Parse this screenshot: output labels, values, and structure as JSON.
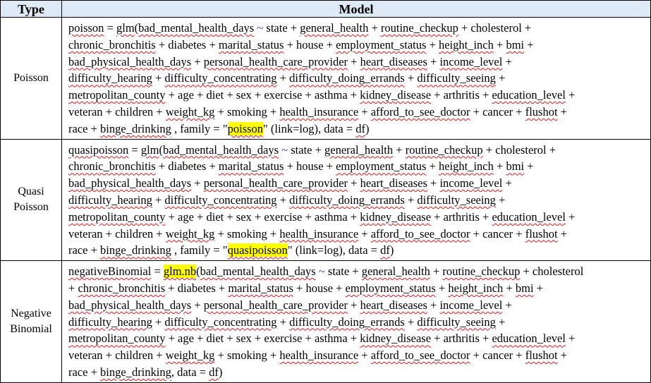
{
  "header": {
    "type_label": "Type",
    "model_label": "Model"
  },
  "rows": [
    {
      "type_lines": [
        "Poisson"
      ],
      "model_lines": [
        [
          [
            "sp",
            "poisson"
          ],
          [
            "t",
            " = "
          ],
          [
            "sp",
            "glm"
          ],
          [
            "t",
            "("
          ],
          [
            "sp",
            "bad_mental_health_days"
          ],
          [
            "t",
            " "
          ],
          [
            "tilde",
            "~"
          ],
          [
            "t",
            " state + "
          ],
          [
            "sp",
            "general_health"
          ],
          [
            "t",
            " + "
          ],
          [
            "sp",
            "routine_checkup"
          ],
          [
            "t",
            " + cholesterol +"
          ]
        ],
        [
          [
            "sp",
            "chronic_bronchitis"
          ],
          [
            "t",
            " + diabetes + "
          ],
          [
            "sp",
            "marital_status"
          ],
          [
            "t",
            " + house + "
          ],
          [
            "sp",
            "employment_status"
          ],
          [
            "t",
            " + "
          ],
          [
            "sp",
            "height_inch"
          ],
          [
            "t",
            " + "
          ],
          [
            "sp",
            "bmi"
          ],
          [
            "t",
            " +"
          ]
        ],
        [
          [
            "sp",
            "bad_physical_health_days"
          ],
          [
            "t",
            " + "
          ],
          [
            "sp",
            "personal_health_care_provider"
          ],
          [
            "t",
            " + "
          ],
          [
            "sp",
            "heart_diseases"
          ],
          [
            "t",
            " + "
          ],
          [
            "sp",
            "income_level"
          ],
          [
            "t",
            " +"
          ]
        ],
        [
          [
            "sp",
            "difficulty_hearing"
          ],
          [
            "t",
            " + "
          ],
          [
            "sp",
            "difficulty_concentrating"
          ],
          [
            "t",
            " + "
          ],
          [
            "sp",
            "difficulty_doing_errands"
          ],
          [
            "t",
            " + "
          ],
          [
            "sp",
            "difficulty_seeing"
          ],
          [
            "t",
            " +"
          ]
        ],
        [
          [
            "sp",
            "metropolitan_county"
          ],
          [
            "t",
            " + age + diet + sex + exercise + asthma + "
          ],
          [
            "sp",
            "kidney_disease"
          ],
          [
            "t",
            " + arthritis + "
          ],
          [
            "sp",
            "education_level"
          ],
          [
            "t",
            " +"
          ]
        ],
        [
          [
            "t",
            "veteran + children + "
          ],
          [
            "sp",
            "weight_kg"
          ],
          [
            "t",
            " + smoking + "
          ],
          [
            "sp",
            "health_insurance"
          ],
          [
            "t",
            " + "
          ],
          [
            "sp",
            "afford_to_see_doctor"
          ],
          [
            "t",
            " + cancer + "
          ],
          [
            "sp",
            "flushot"
          ],
          [
            "t",
            " +"
          ]
        ],
        [
          [
            "t",
            "race + "
          ],
          [
            "sp",
            "binge_drinking"
          ],
          [
            "t",
            " , family = \""
          ],
          [
            "hl-sp",
            "poisson"
          ],
          [
            "t",
            "\" (link=log), data = "
          ],
          [
            "sp",
            "df"
          ],
          [
            "t",
            ")"
          ]
        ]
      ]
    },
    {
      "type_lines": [
        "Quasi",
        "Poisson"
      ],
      "model_lines": [
        [
          [
            "sp",
            "quasipoisson"
          ],
          [
            "t",
            " = "
          ],
          [
            "sp",
            "glm"
          ],
          [
            "t",
            "("
          ],
          [
            "sp",
            "bad_mental_health_days"
          ],
          [
            "t",
            " "
          ],
          [
            "tilde",
            "~"
          ],
          [
            "t",
            " state + "
          ],
          [
            "sp",
            "general_health"
          ],
          [
            "t",
            " + "
          ],
          [
            "sp",
            "routine_checkup"
          ],
          [
            "t",
            " + cholesterol +"
          ]
        ],
        [
          [
            "sp",
            "chronic_bronchitis"
          ],
          [
            "t",
            " + diabetes + "
          ],
          [
            "sp",
            "marital_status"
          ],
          [
            "t",
            " + house + "
          ],
          [
            "sp",
            "employment_status"
          ],
          [
            "t",
            " + "
          ],
          [
            "sp",
            "height_inch"
          ],
          [
            "t",
            " + "
          ],
          [
            "sp",
            "bmi"
          ],
          [
            "t",
            " +"
          ]
        ],
        [
          [
            "sp",
            "bad_physical_health_days"
          ],
          [
            "t",
            " + "
          ],
          [
            "sp",
            "personal_health_care_provider"
          ],
          [
            "t",
            " + "
          ],
          [
            "sp",
            "heart_diseases"
          ],
          [
            "t",
            " + "
          ],
          [
            "sp",
            "income_level"
          ],
          [
            "t",
            " +"
          ]
        ],
        [
          [
            "sp",
            "difficulty_hearing"
          ],
          [
            "t",
            " + "
          ],
          [
            "sp",
            "difficulty_concentrating"
          ],
          [
            "t",
            " + "
          ],
          [
            "sp",
            "difficulty_doing_errands"
          ],
          [
            "t",
            " + "
          ],
          [
            "sp",
            "difficulty_seeing"
          ],
          [
            "t",
            " +"
          ]
        ],
        [
          [
            "sp",
            "metropolitan_county"
          ],
          [
            "t",
            " + age + diet + sex + exercise + asthma + "
          ],
          [
            "sp",
            "kidney_disease"
          ],
          [
            "t",
            " + arthritis + "
          ],
          [
            "sp",
            "education_level"
          ],
          [
            "t",
            " +"
          ]
        ],
        [
          [
            "t",
            "veteran + children + "
          ],
          [
            "sp",
            "weight_kg"
          ],
          [
            "t",
            " + smoking + "
          ],
          [
            "sp",
            "health_insurance"
          ],
          [
            "t",
            " + "
          ],
          [
            "sp",
            "afford_to_see_doctor"
          ],
          [
            "t",
            " + cancer + "
          ],
          [
            "sp",
            "flushot"
          ],
          [
            "t",
            " +"
          ]
        ],
        [
          [
            "t",
            "race + "
          ],
          [
            "sp",
            "binge_drinking"
          ],
          [
            "t",
            " , family = \""
          ],
          [
            "hl-sp",
            "quasipoisson"
          ],
          [
            "t",
            "\" (link=log), data = "
          ],
          [
            "sp",
            "df"
          ],
          [
            "t",
            ")"
          ]
        ]
      ]
    },
    {
      "type_lines": [
        "Negative",
        "Binomial"
      ],
      "model_lines": [
        [
          [
            "sp",
            "negativeBinomial"
          ],
          [
            "t",
            " = "
          ],
          [
            "hl-sp",
            "glm.nb"
          ],
          [
            "t",
            "("
          ],
          [
            "sp",
            "bad_mental_health_days"
          ],
          [
            "t",
            " "
          ],
          [
            "tilde",
            "~"
          ],
          [
            "t",
            " state + "
          ],
          [
            "sp",
            "general_health"
          ],
          [
            "t",
            " + "
          ],
          [
            "sp",
            "routine_checkup"
          ],
          [
            "t",
            " + cholesterol"
          ]
        ],
        [
          [
            "t",
            "+ "
          ],
          [
            "sp",
            "chronic_bronchitis"
          ],
          [
            "t",
            " + diabetes + "
          ],
          [
            "sp",
            "marital_status"
          ],
          [
            "t",
            " + house + "
          ],
          [
            "sp",
            "employment_status"
          ],
          [
            "t",
            " + "
          ],
          [
            "sp",
            "height_inch"
          ],
          [
            "t",
            " + "
          ],
          [
            "sp",
            "bmi"
          ],
          [
            "t",
            " +"
          ]
        ],
        [
          [
            "sp",
            "bad_physical_health_days"
          ],
          [
            "t",
            " + "
          ],
          [
            "sp",
            "personal_health_care_provider"
          ],
          [
            "t",
            " + "
          ],
          [
            "sp",
            "heart_diseases"
          ],
          [
            "t",
            " + "
          ],
          [
            "sp",
            "income_level"
          ],
          [
            "t",
            " +"
          ]
        ],
        [
          [
            "sp",
            "difficulty_hearing"
          ],
          [
            "t",
            " + "
          ],
          [
            "sp",
            "difficulty_concentrating"
          ],
          [
            "t",
            " + "
          ],
          [
            "sp",
            "difficulty_doing_errands"
          ],
          [
            "t",
            " + "
          ],
          [
            "sp",
            "difficulty_seeing"
          ],
          [
            "t",
            " +"
          ]
        ],
        [
          [
            "sp",
            "metropolitan_county"
          ],
          [
            "t",
            " + age + diet + sex + exercise + asthma + "
          ],
          [
            "sp",
            "kidney_disease"
          ],
          [
            "t",
            " + arthritis + "
          ],
          [
            "sp",
            "education_level"
          ],
          [
            "t",
            " +"
          ]
        ],
        [
          [
            "t",
            "veteran + children + "
          ],
          [
            "sp",
            "weight_kg"
          ],
          [
            "t",
            " + smoking + "
          ],
          [
            "sp",
            "health_insurance"
          ],
          [
            "t",
            " + "
          ],
          [
            "sp",
            "afford_to_see_doctor"
          ],
          [
            "t",
            " + cancer + "
          ],
          [
            "sp",
            "flushot"
          ],
          [
            "t",
            " +"
          ]
        ],
        [
          [
            "t",
            "race + "
          ],
          [
            "sp",
            "binge_drinking"
          ],
          [
            "t",
            ", data = "
          ],
          [
            "sp",
            "df"
          ],
          [
            "t",
            ")"
          ]
        ]
      ]
    }
  ]
}
